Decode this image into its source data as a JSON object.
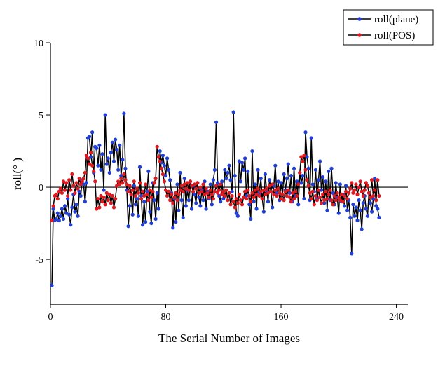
{
  "chart_data": {
    "type": "line",
    "xlabel": "The Serial Number of Images",
    "ylabel": "roll(° )",
    "xlim": [
      0,
      248
    ],
    "ylim": [
      -8.1,
      10
    ],
    "xticks": [
      0,
      80,
      160,
      240
    ],
    "yticks": [
      -5,
      0,
      5,
      10
    ],
    "grid": false,
    "legend": "upper right",
    "x": [
      1,
      2,
      3,
      4,
      5,
      6,
      7,
      8,
      9,
      10,
      11,
      12,
      13,
      14,
      15,
      16,
      17,
      18,
      19,
      20,
      21,
      22,
      23,
      24,
      25,
      26,
      27,
      28,
      29,
      30,
      31,
      32,
      33,
      34,
      35,
      36,
      37,
      38,
      39,
      40,
      41,
      42,
      43,
      44,
      45,
      46,
      47,
      48,
      49,
      50,
      51,
      52,
      53,
      54,
      55,
      56,
      57,
      58,
      59,
      60,
      61,
      62,
      63,
      64,
      65,
      66,
      67,
      68,
      69,
      70,
      71,
      72,
      73,
      74,
      75,
      76,
      77,
      78,
      79,
      80,
      81,
      82,
      83,
      84,
      85,
      86,
      87,
      88,
      89,
      90,
      91,
      92,
      93,
      94,
      95,
      96,
      97,
      98,
      99,
      100,
      101,
      102,
      103,
      104,
      105,
      106,
      107,
      108,
      109,
      110,
      111,
      112,
      113,
      114,
      115,
      116,
      117,
      118,
      119,
      120,
      121,
      122,
      123,
      124,
      125,
      126,
      127,
      128,
      129,
      130,
      131,
      132,
      133,
      134,
      135,
      136,
      137,
      138,
      139,
      140,
      141,
      142,
      143,
      144,
      145,
      146,
      147,
      148,
      149,
      150,
      151,
      152,
      153,
      154,
      155,
      156,
      157,
      158,
      159,
      160,
      161,
      162,
      163,
      164,
      165,
      166,
      167,
      168,
      169,
      170,
      171,
      172,
      173,
      174,
      175,
      176,
      177,
      178,
      179,
      180,
      181,
      182,
      183,
      184,
      185,
      186,
      187,
      188,
      189,
      190,
      191,
      192,
      193,
      194,
      195,
      196,
      197,
      198,
      199,
      200,
      201,
      202,
      203,
      204,
      205,
      206,
      207,
      208,
      209,
      210,
      211,
      212,
      213,
      214,
      215,
      216,
      217,
      218,
      219,
      220,
      221,
      222,
      223,
      224,
      225,
      226,
      227,
      228
    ],
    "series": [
      {
        "name": "roll(plane)",
        "color": "#1f3fd6",
        "line_color": "#000000",
        "values": [
          -6.8,
          -1.5,
          -2.3,
          -2.2,
          -1.8,
          -2.3,
          -2.0,
          -1.5,
          -2.2,
          -1.3,
          -1.8,
          -0.8,
          -1.9,
          -2.6,
          -1.4,
          -0.5,
          -1.7,
          -1.2,
          -2.0,
          -0.3,
          -0.6,
          0.5,
          0.2,
          -1.0,
          0.3,
          3.4,
          3.5,
          2.1,
          3.8,
          1.0,
          2.8,
          2.7,
          1.5,
          2.9,
          1.2,
          2.3,
          -0.2,
          5.0,
          1.6,
          2.0,
          1.0,
          2.4,
          3.1,
          1.8,
          3.3,
          2.6,
          1.2,
          2.9,
          0.8,
          1.9,
          5.1,
          1.3,
          -0.2,
          -2.7,
          -1.3,
          -0.5,
          -1.9,
          0.1,
          -1.2,
          -0.8,
          -2.0,
          1.4,
          -0.6,
          -2.6,
          -1.0,
          -2.4,
          -0.3,
          1.1,
          -1.7,
          -2.5,
          0.3,
          -0.9,
          -2.2,
          -0.4,
          -1.5,
          2.5,
          1.7,
          2.2,
          1.5,
          0.8,
          2.0,
          1.2,
          0.5,
          -0.4,
          -2.8,
          -0.8,
          -2.4,
          0.2,
          -1.6,
          1.0,
          -0.9,
          -2.1,
          0.6,
          -1.3,
          -0.2,
          -0.9,
          0.4,
          -1.5,
          0.1,
          -0.5,
          -1.1,
          0.3,
          -0.7,
          -1.3,
          -0.2,
          -0.9,
          0.4,
          -1.5,
          -0.3,
          -0.8,
          0.2,
          -1.2,
          0.5,
          1.2,
          4.5,
          0.3,
          -0.6,
          -1.0,
          0.4,
          -0.8,
          1.2,
          0.6,
          1.0,
          1.5,
          0.5,
          -0.3,
          5.2,
          0.8,
          -1.8,
          -2.0,
          1.8,
          0.4,
          1.7,
          1.2,
          2.0,
          -0.6,
          1.1,
          -1.2,
          -2.2,
          2.5,
          -1.0,
          0.2,
          -1.5,
          1.2,
          -0.4,
          0.6,
          -0.8,
          -1.7,
          0.9,
          -0.2,
          -1.0,
          0.5,
          -0.3,
          -1.4,
          0.1,
          1.5,
          -0.4,
          0.4,
          -0.9,
          0.3,
          -0.5,
          0.9,
          -0.2,
          0.6,
          1.6,
          -0.4,
          0.8,
          -1.0,
          1.3,
          -0.6,
          0.4,
          -1.2,
          1.0,
          0.3,
          0.8,
          -0.8,
          3.8,
          2.1,
          1.3,
          -0.9,
          3.4,
          0.2,
          -0.3,
          1.2,
          -0.8,
          0.5,
          1.8,
          -0.2,
          0.7,
          -1.1,
          0.4,
          -1.6,
          1.1,
          -0.9,
          1.3,
          -0.4,
          -1.2,
          0.3,
          -0.7,
          -1.8,
          0.2,
          -1.0,
          -0.5,
          -1.3,
          0.1,
          -1.6,
          -0.9,
          -2.1,
          -4.6,
          -1.2,
          -2.0,
          -1.4,
          -2.3,
          -0.9,
          -1.6,
          -2.9,
          -1.1,
          -0.6,
          -1.5,
          -2.0,
          -0.4,
          -1.1,
          -1.7,
          -0.8,
          0.6,
          -1.3,
          -1.5,
          -2.1
        ]
      },
      {
        "name": "roll(POS)",
        "color": "#e0191e",
        "line_color": "#000000",
        "values": [
          -2.3,
          -1.3,
          -0.6,
          -0.5,
          -0.8,
          -0.3,
          -0.1,
          -0.4,
          0.4,
          -0.2,
          0.3,
          -0.6,
          0.5,
          -0.2,
          0.9,
          0.1,
          -0.4,
          0.3,
          -0.1,
          0.6,
          0.2,
          0.4,
          0.6,
          1.0,
          2.2,
          2.0,
          1.6,
          2.4,
          1.5,
          1.1,
          0.4,
          -1.5,
          -0.8,
          -1.4,
          -0.6,
          -1.0,
          -0.7,
          -1.2,
          -0.4,
          -0.9,
          -0.5,
          -1.1,
          -0.6,
          -1.4,
          -0.8,
          0.1,
          0.4,
          0.2,
          0.6,
          0.3,
          0.9,
          0.5,
          0.2,
          -0.3,
          0.1,
          -0.5,
          -0.2,
          0.4,
          -0.6,
          -0.1,
          -0.4,
          0.3,
          -0.8,
          -0.3,
          -0.6,
          0.2,
          -0.5,
          -0.9,
          -0.2,
          -0.7,
          -0.3,
          0.3,
          0.6,
          2.8,
          2.1,
          1.8,
          1.3,
          0.9,
          0.4,
          -0.2,
          -0.6,
          -0.3,
          -0.9,
          -0.5,
          -1.1,
          -0.7,
          -0.4,
          -0.9,
          -0.5,
          -0.2,
          0.1,
          -0.3,
          0.2,
          -0.1,
          0.3,
          -0.2,
          0.4,
          0.1,
          -0.3,
          0.2,
          -0.1,
          0.3,
          -0.4,
          0.0,
          -0.3,
          0.2,
          -0.5,
          -0.1,
          -0.4,
          -0.7,
          -0.2,
          -0.5,
          -0.8,
          -0.3,
          0.1,
          -0.4,
          -0.2,
          0.2,
          -0.5,
          -0.3,
          -0.6,
          -0.2,
          -0.9,
          -0.4,
          -1.2,
          -0.6,
          -1.0,
          -1.4,
          -0.8,
          -1.1,
          -0.5,
          -0.9,
          -1.2,
          -0.7,
          -0.3,
          -0.8,
          -0.2,
          -0.6,
          -1.0,
          -0.4,
          -0.7,
          -0.2,
          -0.5,
          -0.1,
          -0.6,
          -0.3,
          -0.8,
          -0.2,
          -0.5,
          -0.1,
          -0.4,
          0.1,
          -0.3,
          0.2,
          -0.5,
          -0.2,
          -0.6,
          -0.1,
          -0.4,
          -0.8,
          -0.5,
          -0.9,
          -0.3,
          -0.6,
          -0.2,
          -0.7,
          -1.0,
          -0.4,
          -0.8,
          -0.3,
          -0.6,
          0.2,
          1.0,
          2.1,
          1.8,
          2.2,
          1.2,
          0.5,
          0.1,
          -0.4,
          -0.8,
          -0.3,
          -1.2,
          -0.6,
          -0.9,
          -0.2,
          -0.7,
          -1.1,
          -0.5,
          -0.9,
          -0.3,
          -0.8,
          -0.5,
          -0.2,
          -0.9,
          -1.2,
          -0.6,
          -0.9,
          -0.4,
          -0.7,
          -0.9,
          -0.5,
          -1.0,
          -0.6,
          -0.3,
          -0.8,
          -0.4,
          -0.1,
          0.3,
          -0.4,
          -0.2,
          0.2,
          -0.5,
          0.0,
          0.4,
          -0.3,
          -0.6,
          -0.2,
          0.3,
          0.1,
          -0.4,
          -0.7,
          0.5,
          -0.6,
          -0.2,
          -0.9,
          0.5,
          -0.6
        ]
      }
    ]
  }
}
